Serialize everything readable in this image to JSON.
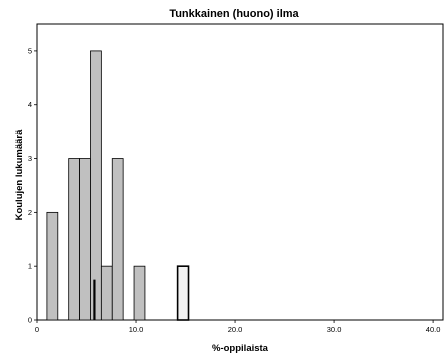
{
  "chart_data": {
    "type": "bar",
    "title": "Tunkkainen (huono) ilma",
    "xlabel": "%-oppilaista",
    "ylabel": "Koulujen lukumäärä",
    "xlim": [
      0,
      41
    ],
    "ylim": [
      0,
      5.5
    ],
    "x_ticks": [
      {
        "value": 0,
        "label": "0"
      },
      {
        "value": 10,
        "label": "10.0"
      },
      {
        "value": 20,
        "label": "20.0"
      },
      {
        "value": 30,
        "label": "30.0"
      },
      {
        "value": 40,
        "label": "40.0"
      }
    ],
    "y_ticks": [
      {
        "value": 0,
        "label": "0"
      },
      {
        "value": 1,
        "label": "1"
      },
      {
        "value": 2,
        "label": "2"
      },
      {
        "value": 3,
        "label": "3"
      },
      {
        "value": 4,
        "label": "4"
      },
      {
        "value": 5,
        "label": "5"
      }
    ],
    "bin_width": 1.1,
    "bins": [
      {
        "x": 1.0,
        "count": 2
      },
      {
        "x": 3.2,
        "count": 3
      },
      {
        "x": 4.3,
        "count": 3
      },
      {
        "x": 5.4,
        "count": 5
      },
      {
        "x": 6.5,
        "count": 1
      },
      {
        "x": 7.6,
        "count": 3
      },
      {
        "x": 9.8,
        "count": 1
      },
      {
        "x": 14.2,
        "count": 1,
        "highlighted": true
      }
    ],
    "marker": {
      "x": 5.8,
      "value": 0.75
    },
    "grid": false,
    "colors": {
      "bar": "#c0c0c0",
      "highlight_bar": "#f2f2f2",
      "stroke": "#000000"
    }
  }
}
